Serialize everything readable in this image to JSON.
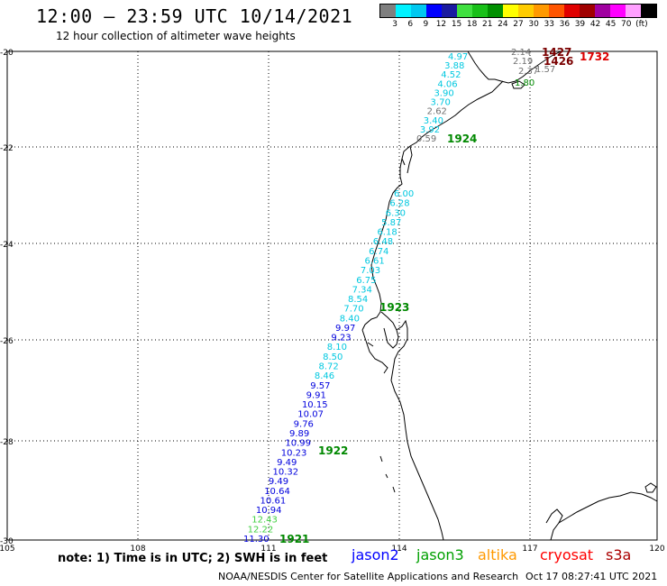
{
  "header": {
    "title": "12:00 – 23:59 UTC 10/14/2021",
    "subtitle": "12 hour collection of altimeter wave heights"
  },
  "legend": {
    "colors": [
      "#7f7f7f",
      "#00f2ff",
      "#00c8f0",
      "#0000ff",
      "#1a1aa0",
      "#40e040",
      "#18c018",
      "#009000",
      "#ffff00",
      "#ffcc00",
      "#ff9900",
      "#ff5500",
      "#e00000",
      "#a00000",
      "#a000a0",
      "#ff00ff",
      "#ffa0ff",
      "#000000"
    ],
    "labels": [
      "3",
      "6",
      "9",
      "12",
      "15",
      "18",
      "21",
      "24",
      "27",
      "30",
      "33",
      "36",
      "39",
      "42",
      "45",
      "70",
      "(ft)"
    ]
  },
  "map": {
    "lat_labels": [
      "-20",
      "-22",
      "-24",
      "-26",
      "-28",
      "-30"
    ],
    "lon_labels": [
      "105",
      "108",
      "111",
      "114",
      "117",
      "120"
    ],
    "track_times": [
      {
        "text": "1924",
        "color": "#008800"
      },
      {
        "text": "1923",
        "color": "#008800"
      },
      {
        "text": "1922",
        "color": "#008800"
      },
      {
        "text": "1921",
        "color": "#008800"
      },
      {
        "text": "1427",
        "color": "#7a0000"
      },
      {
        "text": "1426",
        "color": "#7a0000"
      },
      {
        "text": "1732",
        "color": "#dd0000"
      }
    ],
    "track_a_values": [
      {
        "text": "4.97",
        "color": "#00c8e0"
      },
      {
        "text": "3.88",
        "color": "#00c8e0"
      },
      {
        "text": "4.52",
        "color": "#00c8e0"
      },
      {
        "text": "4.06",
        "color": "#00c8e0"
      },
      {
        "text": "3.90",
        "color": "#00c8e0"
      },
      {
        "text": "3.70",
        "color": "#00c8e0"
      },
      {
        "text": "2.62",
        "color": "#707070"
      },
      {
        "text": "3.40",
        "color": "#00c8e0"
      },
      {
        "text": "3.92",
        "color": "#00c8e0"
      },
      {
        "text": "0.59",
        "color": "#707070"
      }
    ],
    "track_b_values": [
      {
        "text": "6.00",
        "color": "#00c8e0"
      },
      {
        "text": "6.28",
        "color": "#00c8e0"
      },
      {
        "text": "6.30",
        "color": "#00c8e0"
      },
      {
        "text": "5.87",
        "color": "#00c8e0"
      },
      {
        "text": "6.18",
        "color": "#00c8e0"
      },
      {
        "text": "6.48",
        "color": "#00c8e0"
      },
      {
        "text": "6.74",
        "color": "#00c8e0"
      },
      {
        "text": "6.61",
        "color": "#00c8e0"
      },
      {
        "text": "7.03",
        "color": "#00c8e0"
      },
      {
        "text": "6.75",
        "color": "#00c8e0"
      },
      {
        "text": "7.34",
        "color": "#00c8e0"
      },
      {
        "text": "8.54",
        "color": "#00c8e0"
      },
      {
        "text": "7.70",
        "color": "#00c8e0"
      },
      {
        "text": "8.40",
        "color": "#00c8e0"
      },
      {
        "text": "9.97",
        "color": "#0000dd"
      },
      {
        "text": "9.23",
        "color": "#0000dd"
      },
      {
        "text": "8.10",
        "color": "#00c8e0"
      },
      {
        "text": "8.50",
        "color": "#00c8e0"
      },
      {
        "text": "8.72",
        "color": "#00c8e0"
      },
      {
        "text": "8.46",
        "color": "#00c8e0"
      },
      {
        "text": "9.57",
        "color": "#0000dd"
      },
      {
        "text": "9.91",
        "color": "#0000dd"
      },
      {
        "text": "10.15",
        "color": "#0000dd"
      },
      {
        "text": "10.07",
        "color": "#0000dd"
      },
      {
        "text": "9.76",
        "color": "#0000dd"
      },
      {
        "text": "9.89",
        "color": "#0000dd"
      },
      {
        "text": "10.99",
        "color": "#0000dd"
      },
      {
        "text": "10.23",
        "color": "#0000dd"
      },
      {
        "text": "9.49",
        "color": "#0000dd"
      },
      {
        "text": "10.32",
        "color": "#0000dd"
      },
      {
        "text": "9.49",
        "color": "#0000dd"
      },
      {
        "text": "10.64",
        "color": "#0000dd"
      },
      {
        "text": "10.61",
        "color": "#0000dd"
      },
      {
        "text": "10.94",
        "color": "#0000dd"
      },
      {
        "text": "12.43",
        "color": "#40d040"
      },
      {
        "text": "12.22",
        "color": "#40d040"
      },
      {
        "text": "11.30",
        "color": "#0000dd"
      }
    ],
    "track_c_values": [
      {
        "text": "2.14",
        "color": "#707070"
      },
      {
        "text": "2.19",
        "color": "#707070"
      },
      {
        "text": "2.37",
        "color": "#707070"
      },
      {
        "text": "1.57",
        "color": "#707070"
      },
      {
        "text": "1.80",
        "color": "#008800"
      }
    ]
  },
  "footer": {
    "note": "note: 1) Time is in UTC; 2) SWH is in feet",
    "satellites": [
      {
        "text": "jason2",
        "color": "#0000ff"
      },
      {
        "text": "jason3",
        "color": "#00a000"
      },
      {
        "text": "altika",
        "color": "#ff9900"
      },
      {
        "text": "cryosat",
        "color": "#ff0000"
      },
      {
        "text": "s3a",
        "color": "#aa0000"
      }
    ],
    "credit": "NOAA/NESDIS Center for Satellite Applications and Research",
    "timestamp": "Oct 17 08:27:41 UTC 2021"
  }
}
